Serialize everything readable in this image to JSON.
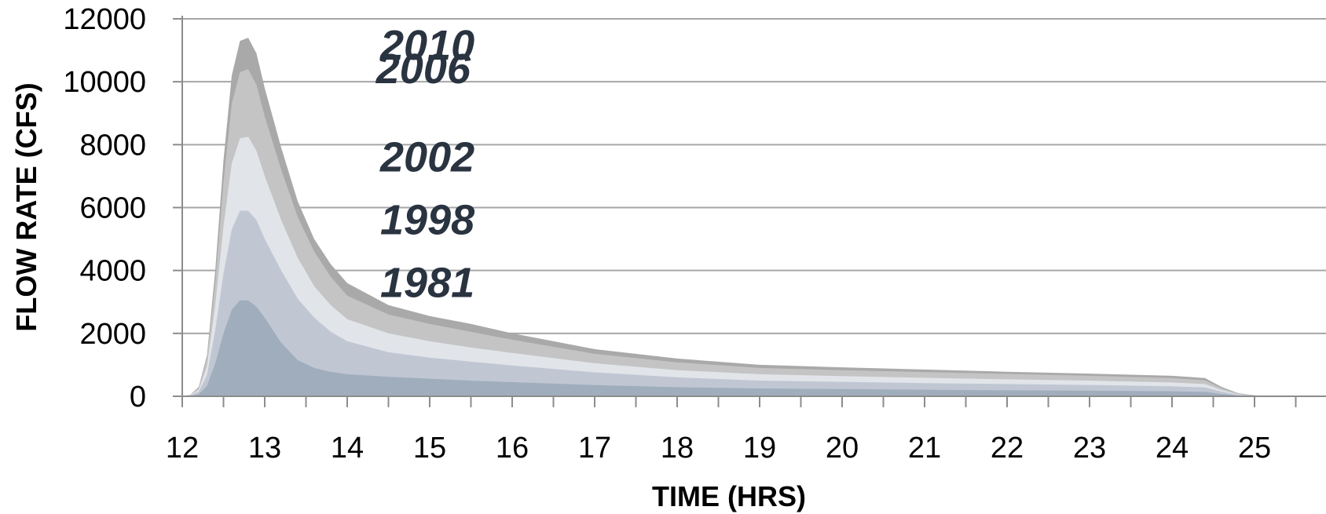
{
  "chart_data": {
    "type": "area",
    "title": "",
    "xlabel": "TIME (HRS)",
    "ylabel": "FLOW RATE (CFS)",
    "xlim": [
      12,
      25.5
    ],
    "ylim": [
      0,
      12000
    ],
    "xticks": [
      12,
      13,
      14,
      15,
      16,
      17,
      18,
      19,
      20,
      21,
      22,
      23,
      24,
      25
    ],
    "yticks": [
      0,
      2000,
      4000,
      6000,
      8000,
      10000,
      12000
    ],
    "grid": true,
    "x": [
      12.0,
      12.1,
      12.2,
      12.3,
      12.4,
      12.5,
      12.6,
      12.7,
      12.8,
      12.9,
      13.0,
      13.2,
      13.4,
      13.6,
      13.8,
      14.0,
      14.5,
      15.0,
      15.5,
      16.0,
      17.0,
      18.0,
      19.0,
      20.0,
      21.0,
      22.0,
      23.0,
      24.0,
      24.4,
      24.6,
      24.8,
      25.0,
      25.2,
      25.4
    ],
    "series": [
      {
        "name": "2010",
        "color": "#a9a9a9",
        "values": [
          0,
          50,
          300,
          1300,
          4000,
          7500,
          10200,
          11300,
          11400,
          10900,
          9800,
          7900,
          6200,
          5000,
          4200,
          3600,
          2900,
          2550,
          2300,
          2000,
          1500,
          1200,
          1000,
          920,
          850,
          780,
          720,
          650,
          580,
          300,
          100,
          30,
          10,
          0
        ]
      },
      {
        "name": "2006",
        "color": "#c4c4c4",
        "values": [
          0,
          45,
          270,
          1200,
          3600,
          6800,
          9300,
          10300,
          10400,
          9900,
          8900,
          7200,
          5700,
          4600,
          3800,
          3200,
          2600,
          2300,
          2050,
          1800,
          1350,
          1080,
          900,
          830,
          770,
          710,
          650,
          580,
          510,
          260,
          85,
          25,
          8,
          0
        ]
      },
      {
        "name": "2002",
        "color": "#e1e4e9",
        "values": [
          0,
          35,
          210,
          950,
          2900,
          5400,
          7400,
          8200,
          8250,
          7800,
          7000,
          5600,
          4400,
          3500,
          2900,
          2450,
          2000,
          1750,
          1550,
          1380,
          1050,
          830,
          700,
          640,
          590,
          540,
          500,
          440,
          390,
          200,
          65,
          20,
          6,
          0
        ]
      },
      {
        "name": "1998",
        "color": "#c0c7d3",
        "values": [
          0,
          25,
          150,
          680,
          2100,
          3900,
          5300,
          5900,
          5900,
          5600,
          5000,
          4000,
          3100,
          2500,
          2050,
          1750,
          1400,
          1230,
          1100,
          980,
          760,
          600,
          500,
          460,
          420,
          390,
          360,
          320,
          280,
          150,
          50,
          15,
          5,
          0
        ]
      },
      {
        "name": "1981",
        "color": "#a0adbd",
        "values": [
          0,
          12,
          70,
          330,
          1050,
          2000,
          2750,
          3050,
          3050,
          2850,
          2500,
          1700,
          1150,
          900,
          780,
          700,
          620,
          560,
          500,
          450,
          360,
          290,
          250,
          230,
          210,
          190,
          180,
          160,
          140,
          75,
          25,
          8,
          2,
          0
        ]
      }
    ],
    "labels": [
      {
        "text": "2010",
        "x": 14.4,
        "y": 10700
      },
      {
        "text": "2006",
        "x": 14.35,
        "y": 9950
      },
      {
        "text": "2002",
        "x": 14.4,
        "y": 7150
      },
      {
        "text": "1998",
        "x": 14.4,
        "y": 5150
      },
      {
        "text": "1981",
        "x": 14.4,
        "y": 3150
      }
    ]
  }
}
